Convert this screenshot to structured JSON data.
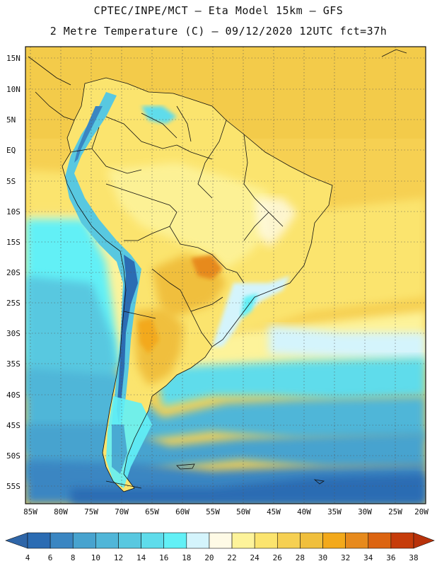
{
  "title_line1": "CPTEC/INPE/MCT –  Eta Model 15km – GFS",
  "title_line2": "2 Metre Temperature (C) – 09/12/2020 12UTC fct=37h",
  "map": {
    "lat_labels": [
      "15N",
      "10N",
      "5N",
      "EQ",
      "5S",
      "10S",
      "15S",
      "20S",
      "25S",
      "30S",
      "35S",
      "40S",
      "45S",
      "50S",
      "55S"
    ],
    "lon_labels": [
      "85W",
      "80W",
      "75W",
      "70W",
      "65W",
      "60W",
      "55W",
      "50W",
      "45W",
      "40W",
      "35W",
      "30W",
      "25W",
      "20W"
    ],
    "lat_range": [
      16.5,
      -57.5
    ],
    "lon_range": [
      -85.5,
      -20
    ],
    "gridlines": true,
    "gridline_style": "dotted"
  },
  "colorbar": {
    "ticks": [
      "4",
      "6",
      "8",
      "10",
      "12",
      "14",
      "16",
      "18",
      "20",
      "22",
      "24",
      "26",
      "28",
      "30",
      "32",
      "34",
      "36",
      "38"
    ],
    "colors": [
      "#2b6cb3",
      "#3a86c2",
      "#47a3cf",
      "#50b6d8",
      "#58c8e0",
      "#5fdceb",
      "#62f0f6",
      "#d4f4fc",
      "#fefae6",
      "#fdf39a",
      "#fbe46e",
      "#f6d052",
      "#f0bf3c",
      "#f3a91a",
      "#e78a1c",
      "#dc6410",
      "#c63c0a",
      "#b8320a"
    ],
    "low_arrow_color": "#2f66a8",
    "high_arrow_color": "#b8320a"
  }
}
